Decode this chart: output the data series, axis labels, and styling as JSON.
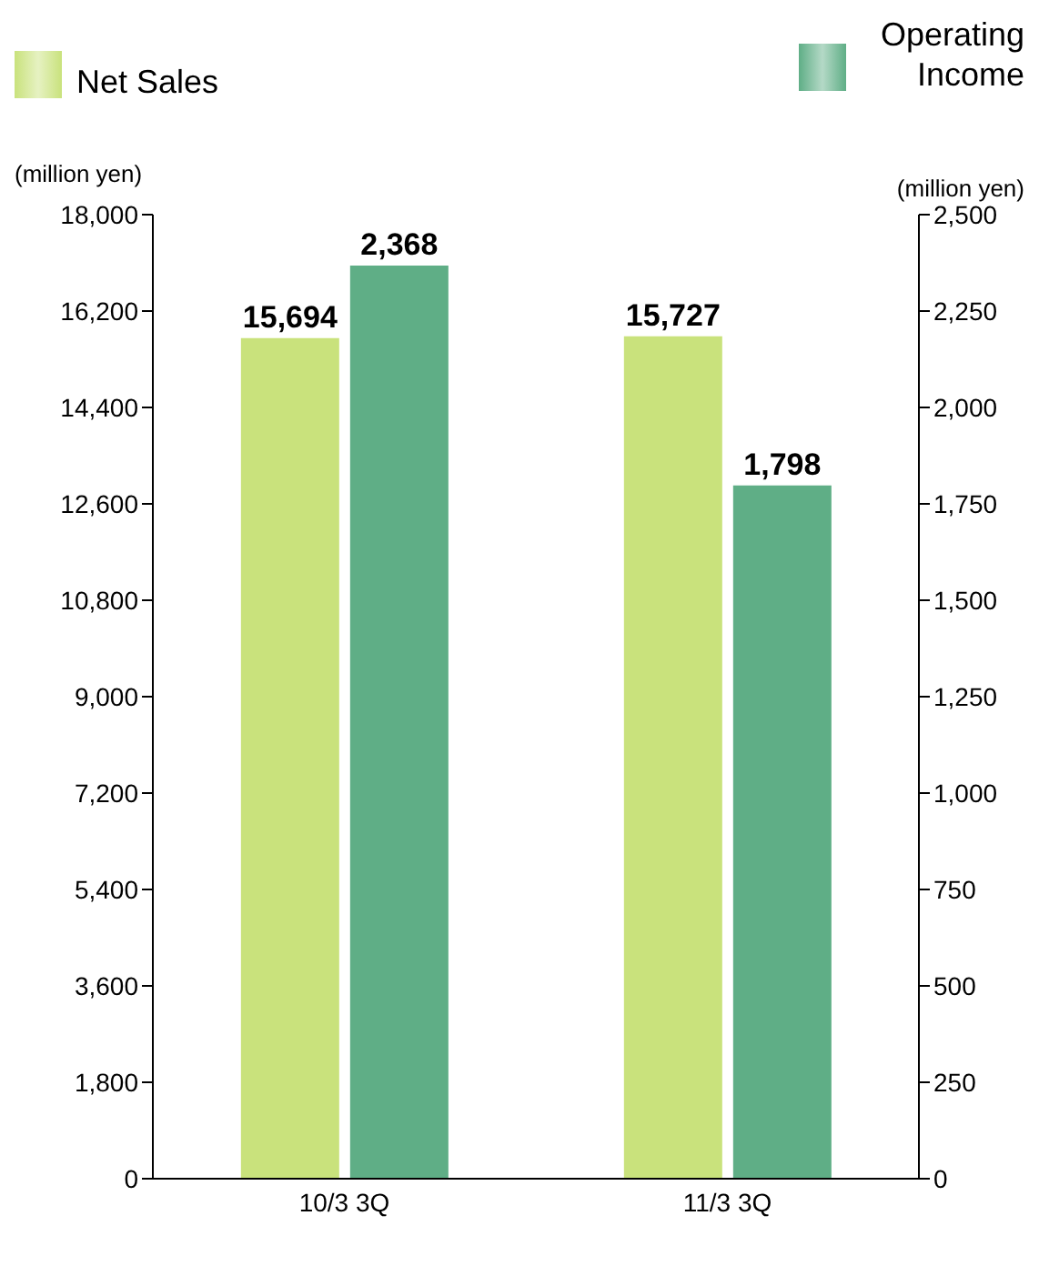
{
  "chart_data": {
    "type": "bar",
    "categories": [
      "10/3 3Q",
      "11/3 3Q"
    ],
    "series": [
      {
        "name": "Net Sales",
        "color": "#c9e27c",
        "values": [
          15694,
          15727
        ],
        "value_labels": [
          "15,694",
          "15,727"
        ]
      },
      {
        "name": "Operating Income",
        "color": "#5fae86",
        "values": [
          2368,
          1798
        ],
        "value_labels": [
          "2,368",
          "1,798"
        ],
        "axis": "y2"
      }
    ],
    "ylabel": "(million yen)",
    "y2label": "(million yen)",
    "ylim": [
      0,
      18000
    ],
    "yticks": [
      0,
      {
        "value": 1800,
        "label": "1,800"
      },
      {
        "value": 3600,
        "label": "3,600"
      },
      {
        "value": 5400,
        "label": "5,400"
      },
      {
        "value": 7200,
        "label": "7,200"
      },
      {
        "value": 9000,
        "label": "9,000"
      },
      {
        "value": 10800,
        "label": "10,800"
      },
      {
        "value": 12600,
        "label": "12,600"
      },
      {
        "value": 14400,
        "label": "14,400"
      },
      {
        "value": 16200,
        "label": "16,200"
      },
      {
        "value": 18000,
        "label": "18,000"
      }
    ],
    "y2lim": [
      0,
      2500
    ],
    "y2ticks": [
      0,
      250,
      500,
      750,
      {
        "value": 1000,
        "label": "1,000"
      },
      {
        "value": 1250,
        "label": "1,250"
      },
      {
        "value": 1500,
        "label": "1,500"
      },
      {
        "value": 1750,
        "label": "1,750"
      },
      {
        "value": 2000,
        "label": "2,000"
      },
      {
        "value": 2250,
        "label": "2,250"
      },
      {
        "value": 2500,
        "label": "2,500"
      }
    ],
    "grid": false,
    "legend": "top"
  }
}
